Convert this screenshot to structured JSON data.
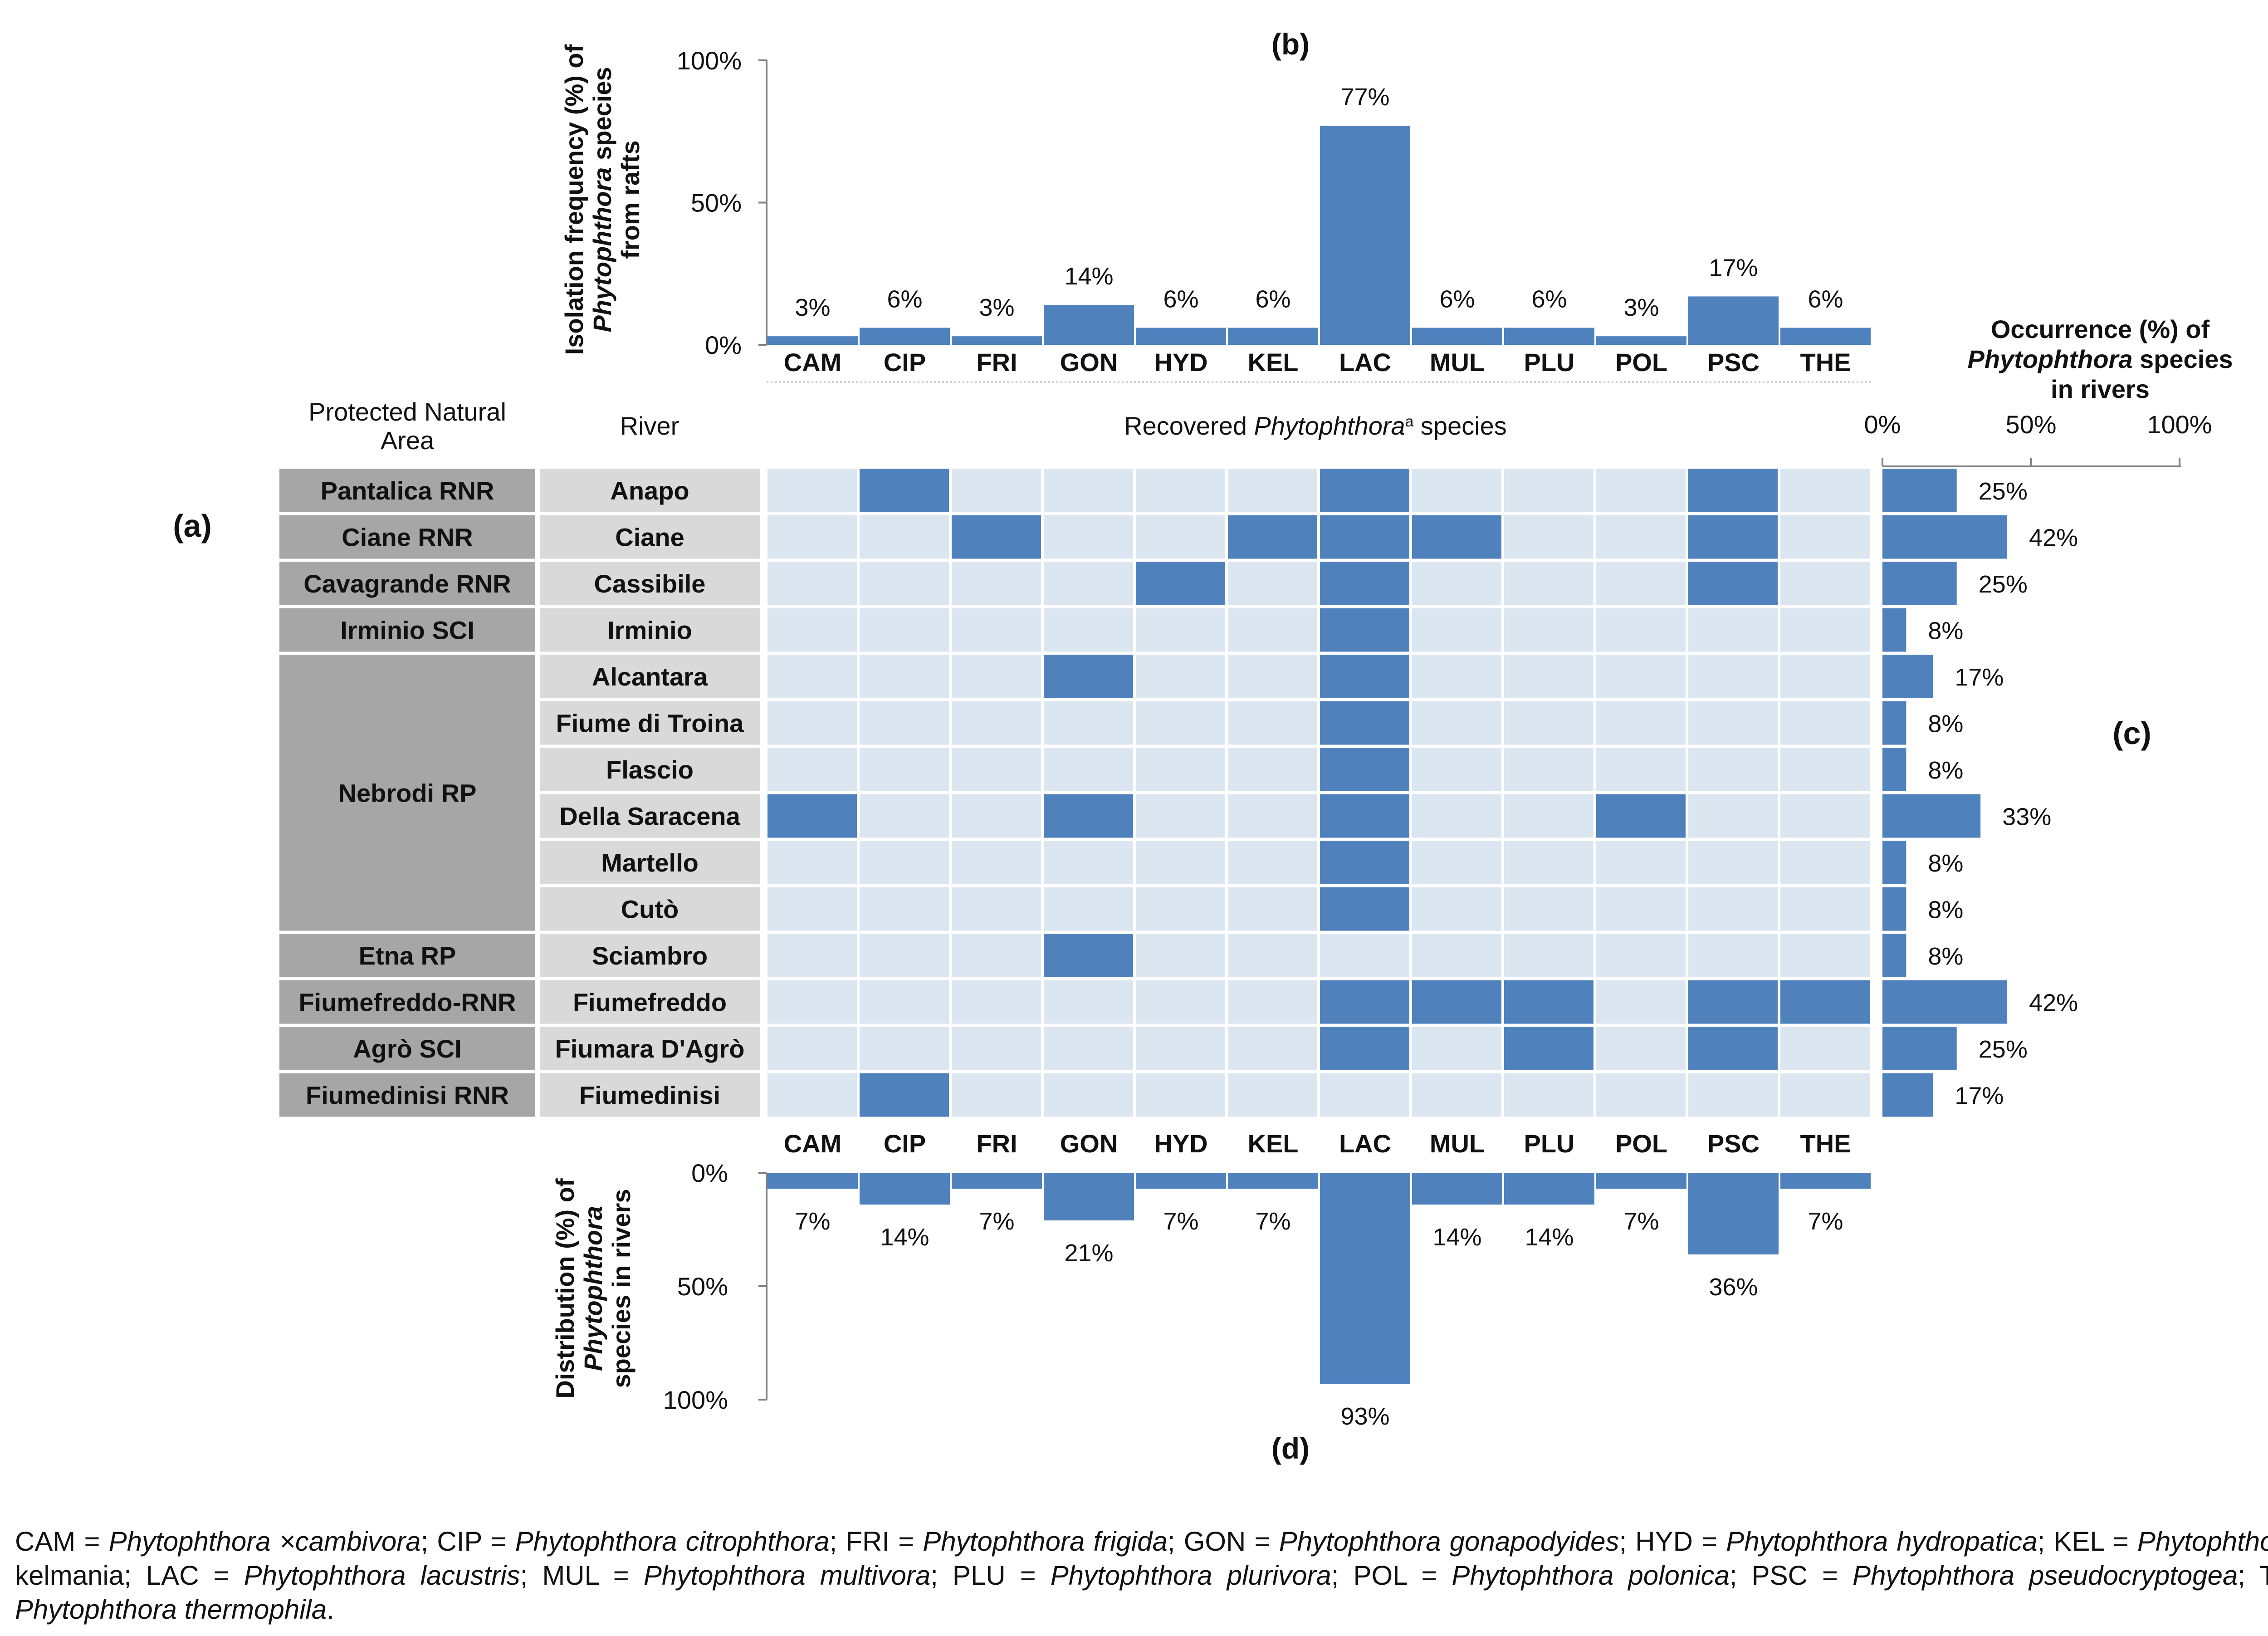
{
  "colors": {
    "bar": "#4f81bd",
    "cell_on": "#4f81bd",
    "cell_off": "#dce6f1",
    "area_cell": "#a6a6a6",
    "river_cell": "#d9d9d9",
    "axis": "#7f7f7f"
  },
  "panel_labels": {
    "a": "(a)",
    "b": "(b)",
    "c": "(c)",
    "d": "(d)"
  },
  "headers": {
    "area_line1": "Protected Natural",
    "area_line2": "Area",
    "river": "River",
    "species_pre": "Recovered ",
    "species_genus": "Phytophthora",
    "species_sup": "a",
    "species_post": " species"
  },
  "chart_data": [
    {
      "id": "b",
      "type": "bar",
      "title": "(b)",
      "ylabel_lines": [
        "Isolation frequency  (%) of",
        "Phytophthora species",
        "from rafts"
      ],
      "yticks": [
        "0%",
        "50%",
        "100%"
      ],
      "ylim": [
        0,
        100
      ],
      "categories": [
        "CAM",
        "CIP",
        "FRI",
        "GON",
        "HYD",
        "KEL",
        "LAC",
        "MUL",
        "PLU",
        "POL",
        "PSC",
        "THE"
      ],
      "values": [
        3,
        6,
        3,
        14,
        6,
        6,
        77,
        6,
        6,
        3,
        17,
        6
      ],
      "labels": [
        "3%",
        "6%",
        "3%",
        "14%",
        "6%",
        "6%",
        "77%",
        "6%",
        "6%",
        "3%",
        "17%",
        "6%"
      ]
    },
    {
      "id": "a",
      "type": "table",
      "title": "(a)",
      "species": [
        "CAM",
        "CIP",
        "FRI",
        "GON",
        "HYD",
        "KEL",
        "LAC",
        "MUL",
        "PLU",
        "POL",
        "PSC",
        "THE"
      ],
      "areas": [
        {
          "name": "Pantalica RNR",
          "rows": 1
        },
        {
          "name": "Ciane RNR",
          "rows": 1
        },
        {
          "name": "Cavagrande RNR",
          "rows": 1
        },
        {
          "name": "Irminio SCI",
          "rows": 1
        },
        {
          "name": "Nebrodi RP",
          "rows": 6
        },
        {
          "name": "Etna RP",
          "rows": 1
        },
        {
          "name": "Fiumefreddo-RNR",
          "rows": 1
        },
        {
          "name": "Agrò SCI",
          "rows": 1
        },
        {
          "name": "Fiumedinisi RNR",
          "rows": 1
        }
      ],
      "rivers": [
        "Anapo",
        "Ciane",
        "Cassibile",
        "Irminio",
        "Alcantara",
        "Fiume di Troina",
        "Flascio",
        "Della Saracena",
        "Martello",
        "Cutò",
        "Sciambro",
        "Fiumefreddo",
        "Fiumara D'Agrò",
        "Fiumedinisi"
      ],
      "presence": [
        [
          0,
          1,
          0,
          0,
          0,
          0,
          1,
          0,
          0,
          0,
          1,
          0
        ],
        [
          0,
          0,
          1,
          0,
          0,
          1,
          1,
          1,
          0,
          0,
          1,
          0
        ],
        [
          0,
          0,
          0,
          0,
          1,
          0,
          1,
          0,
          0,
          0,
          1,
          0
        ],
        [
          0,
          0,
          0,
          0,
          0,
          0,
          1,
          0,
          0,
          0,
          0,
          0
        ],
        [
          0,
          0,
          0,
          1,
          0,
          0,
          1,
          0,
          0,
          0,
          0,
          0
        ],
        [
          0,
          0,
          0,
          0,
          0,
          0,
          1,
          0,
          0,
          0,
          0,
          0
        ],
        [
          0,
          0,
          0,
          0,
          0,
          0,
          1,
          0,
          0,
          0,
          0,
          0
        ],
        [
          1,
          0,
          0,
          1,
          0,
          0,
          1,
          0,
          0,
          1,
          0,
          0
        ],
        [
          0,
          0,
          0,
          0,
          0,
          0,
          1,
          0,
          0,
          0,
          0,
          0
        ],
        [
          0,
          0,
          0,
          0,
          0,
          0,
          1,
          0,
          0,
          0,
          0,
          0
        ],
        [
          0,
          0,
          0,
          1,
          0,
          0,
          0,
          0,
          0,
          0,
          0,
          0
        ],
        [
          0,
          0,
          0,
          0,
          0,
          0,
          1,
          1,
          1,
          0,
          1,
          1
        ],
        [
          0,
          0,
          0,
          0,
          0,
          0,
          1,
          0,
          1,
          0,
          1,
          0
        ],
        [
          0,
          1,
          0,
          0,
          0,
          0,
          0,
          0,
          0,
          0,
          0,
          0
        ]
      ]
    },
    {
      "id": "c",
      "type": "bar",
      "orientation": "horizontal",
      "title": "(c)",
      "xlabel_lines": [
        "Occurrence (%) of",
        "Phytophthora species",
        "in rivers"
      ],
      "xticks": [
        "0%",
        "50%",
        "100%"
      ],
      "xlim": [
        0,
        100
      ],
      "categories": [
        "Anapo",
        "Ciane",
        "Cassibile",
        "Irminio",
        "Alcantara",
        "Fiume di Troina",
        "Flascio",
        "Della Saracena",
        "Martello",
        "Cutò",
        "Sciambro",
        "Fiumefreddo",
        "Fiumara D'Agrò",
        "Fiumedinisi"
      ],
      "values": [
        25,
        42,
        25,
        8,
        17,
        8,
        8,
        33,
        8,
        8,
        8,
        42,
        25,
        17
      ],
      "labels": [
        "25%",
        "42%",
        "25%",
        "8%",
        "17%",
        "8%",
        "8%",
        "33%",
        "8%",
        "8%",
        "8%",
        "42%",
        "25%",
        "17%"
      ]
    },
    {
      "id": "d",
      "type": "bar",
      "orientation": "downward",
      "title": "(d)",
      "ylabel_lines": [
        "Distribution  (%) of",
        "Phytophthora",
        "species in rivers"
      ],
      "yticks": [
        "0%",
        "50%",
        "100%"
      ],
      "ylim": [
        0,
        100
      ],
      "categories": [
        "CAM",
        "CIP",
        "FRI",
        "GON",
        "HYD",
        "KEL",
        "LAC",
        "MUL",
        "PLU",
        "POL",
        "PSC",
        "THE"
      ],
      "values": [
        7,
        14,
        7,
        21,
        7,
        7,
        93,
        14,
        14,
        7,
        36,
        7
      ],
      "labels": [
        "7%",
        "14%",
        "7%",
        "21%",
        "7%",
        "7%",
        "93%",
        "14%",
        "14%",
        "7%",
        "36%",
        "7%"
      ]
    }
  ],
  "caption": [
    {
      "t": "CAM = ",
      "i": false
    },
    {
      "t": "Phytophthora ×cambivora",
      "i": true
    },
    {
      "t": "; CIP = ",
      "i": false
    },
    {
      "t": "Phytophthora citrophthora",
      "i": true
    },
    {
      "t": "; FRI = ",
      "i": false
    },
    {
      "t": "Phytophthora frigida",
      "i": true
    },
    {
      "t": "; GON = ",
      "i": false
    },
    {
      "t": "Phytophthora gonapodyides",
      "i": true
    },
    {
      "t": "; HYD = ",
      "i": false
    },
    {
      "t": "Phytophthora hydropatica",
      "i": true
    },
    {
      "t": "; KEL = ",
      "i": false
    },
    {
      "t": "Phytophthora",
      "i": true
    },
    {
      "t": " sp. kelmania; LAC = ",
      "i": false
    },
    {
      "t": "Phytophthora lacustris",
      "i": true
    },
    {
      "t": "; MUL = ",
      "i": false
    },
    {
      "t": "Phytophthora multivora",
      "i": true
    },
    {
      "t": "; PLU = ",
      "i": false
    },
    {
      "t": "Phytophthora plurivora",
      "i": true
    },
    {
      "t": "; POL = ",
      "i": false
    },
    {
      "t": "Phytophthora polonica",
      "i": true
    },
    {
      "t": "; PSC = ",
      "i": false
    },
    {
      "t": "Phytophthora pseudocryptogea",
      "i": true
    },
    {
      "t": "; THE = ",
      "i": false
    },
    {
      "t": "Phytophthora thermophila",
      "i": true
    },
    {
      "t": ".",
      "i": false
    }
  ]
}
